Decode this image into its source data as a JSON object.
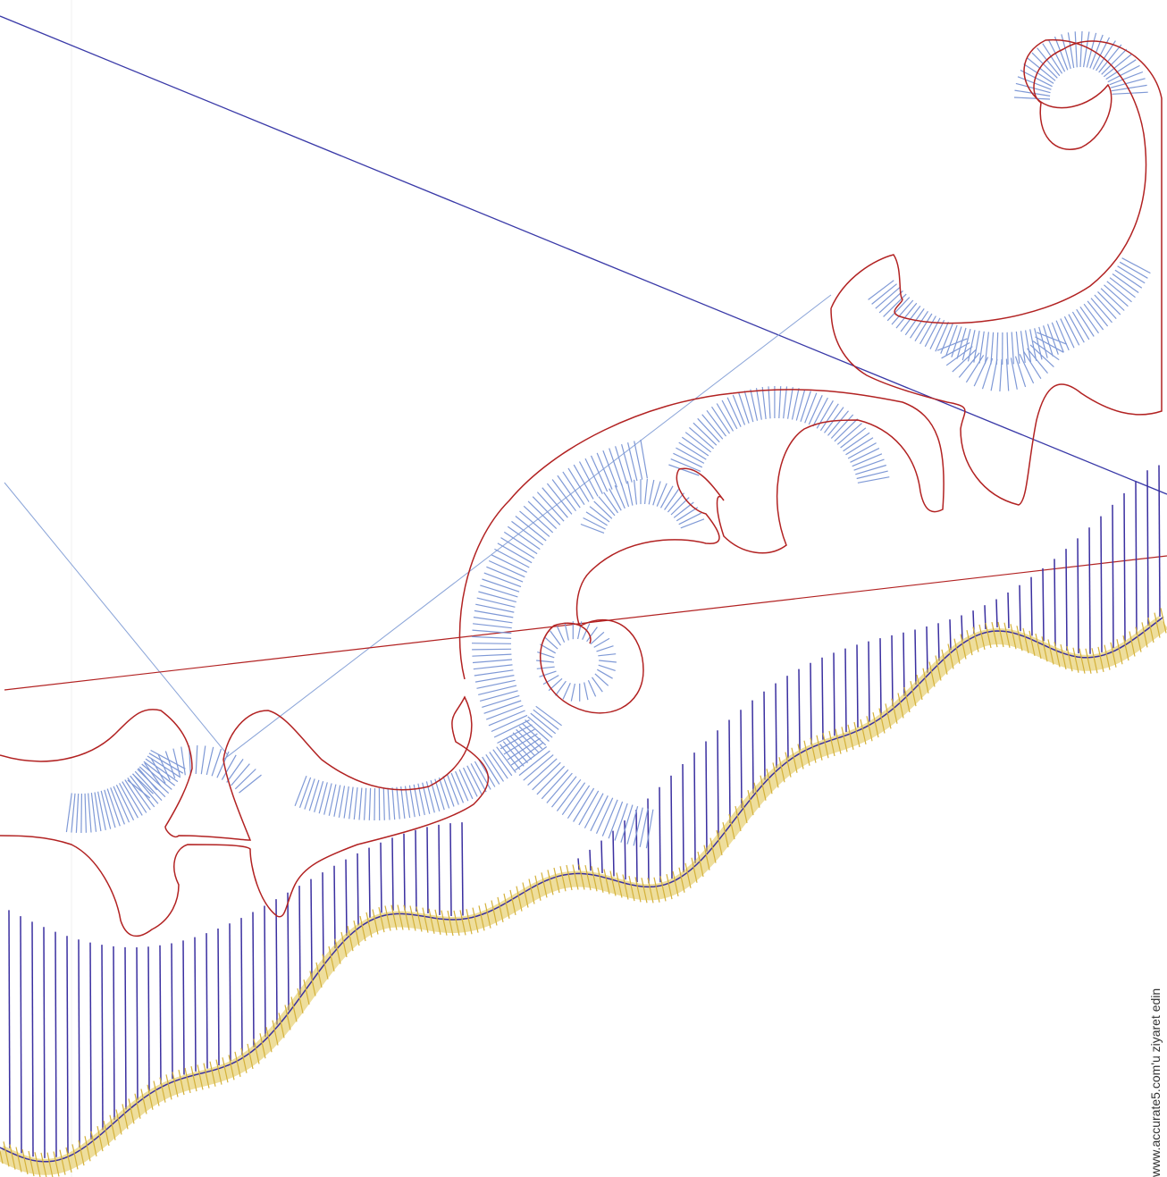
{
  "watermark": "www.accurate5.com'u ziyaret edin",
  "colors": {
    "background": "#ffffff",
    "outline": "#b22222",
    "fill_stitch": "#7f99d6",
    "satin_stitch": "#3a2fa0",
    "border_stitch": "#e0c24a",
    "guide_line_dark": "#3a3aa8",
    "guide_line_light": "#8aa4d8",
    "guide_line_red": "#b22222",
    "grid_line": "#f1f1f1"
  },
  "layers": [
    "outline",
    "fill-stitch",
    "satin-stitch",
    "border-stitch",
    "guide-lines"
  ]
}
